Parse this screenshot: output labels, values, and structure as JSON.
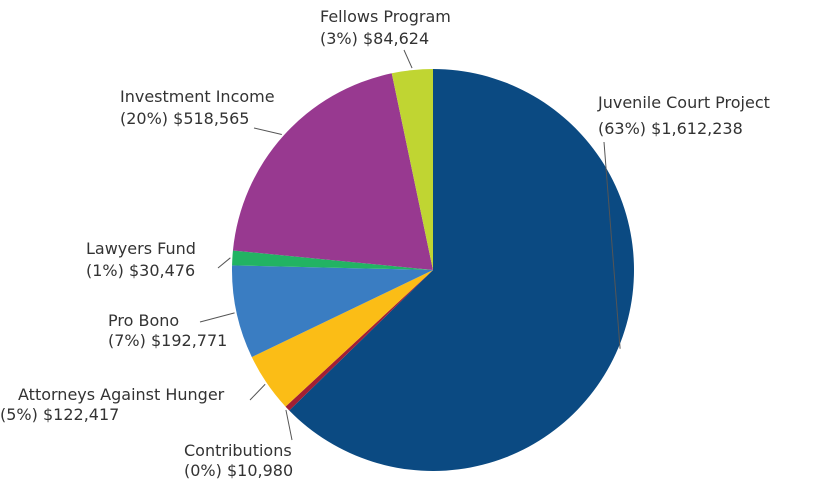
{
  "chart_data": {
    "type": "pie",
    "title": "",
    "start_angle_deg": 0,
    "direction": "clockwise",
    "slices": [
      {
        "name": "Juvenile Court Project",
        "percent_label": "(63%)",
        "amount_label": "$1,612,238",
        "value": 1612238,
        "color": "#0b4a82"
      },
      {
        "name": "Contributions",
        "percent_label": "(0%)",
        "amount_label": "$10,980",
        "value": 10980,
        "color": "#a31f34"
      },
      {
        "name": "Attorneys Against Hunger",
        "percent_label": "(5%)",
        "amount_label": "$122,417",
        "value": 122417,
        "color": "#fbbd16"
      },
      {
        "name": "Pro Bono",
        "percent_label": "(7%)",
        "amount_label": "$192,771",
        "value": 192771,
        "color": "#3a7dc2"
      },
      {
        "name": "Lawyers Fund",
        "percent_label": "(1%)",
        "amount_label": "$30,476",
        "value": 30476,
        "color": "#22b363"
      },
      {
        "name": "Investment Income",
        "percent_label": "(20%)",
        "amount_label": "$518,565",
        "value": 518565,
        "color": "#983990"
      },
      {
        "name": "Fellows Program",
        "percent_label": "(3%)",
        "amount_label": "$84,624",
        "value": 84624,
        "color": "#c0d532"
      }
    ]
  }
}
